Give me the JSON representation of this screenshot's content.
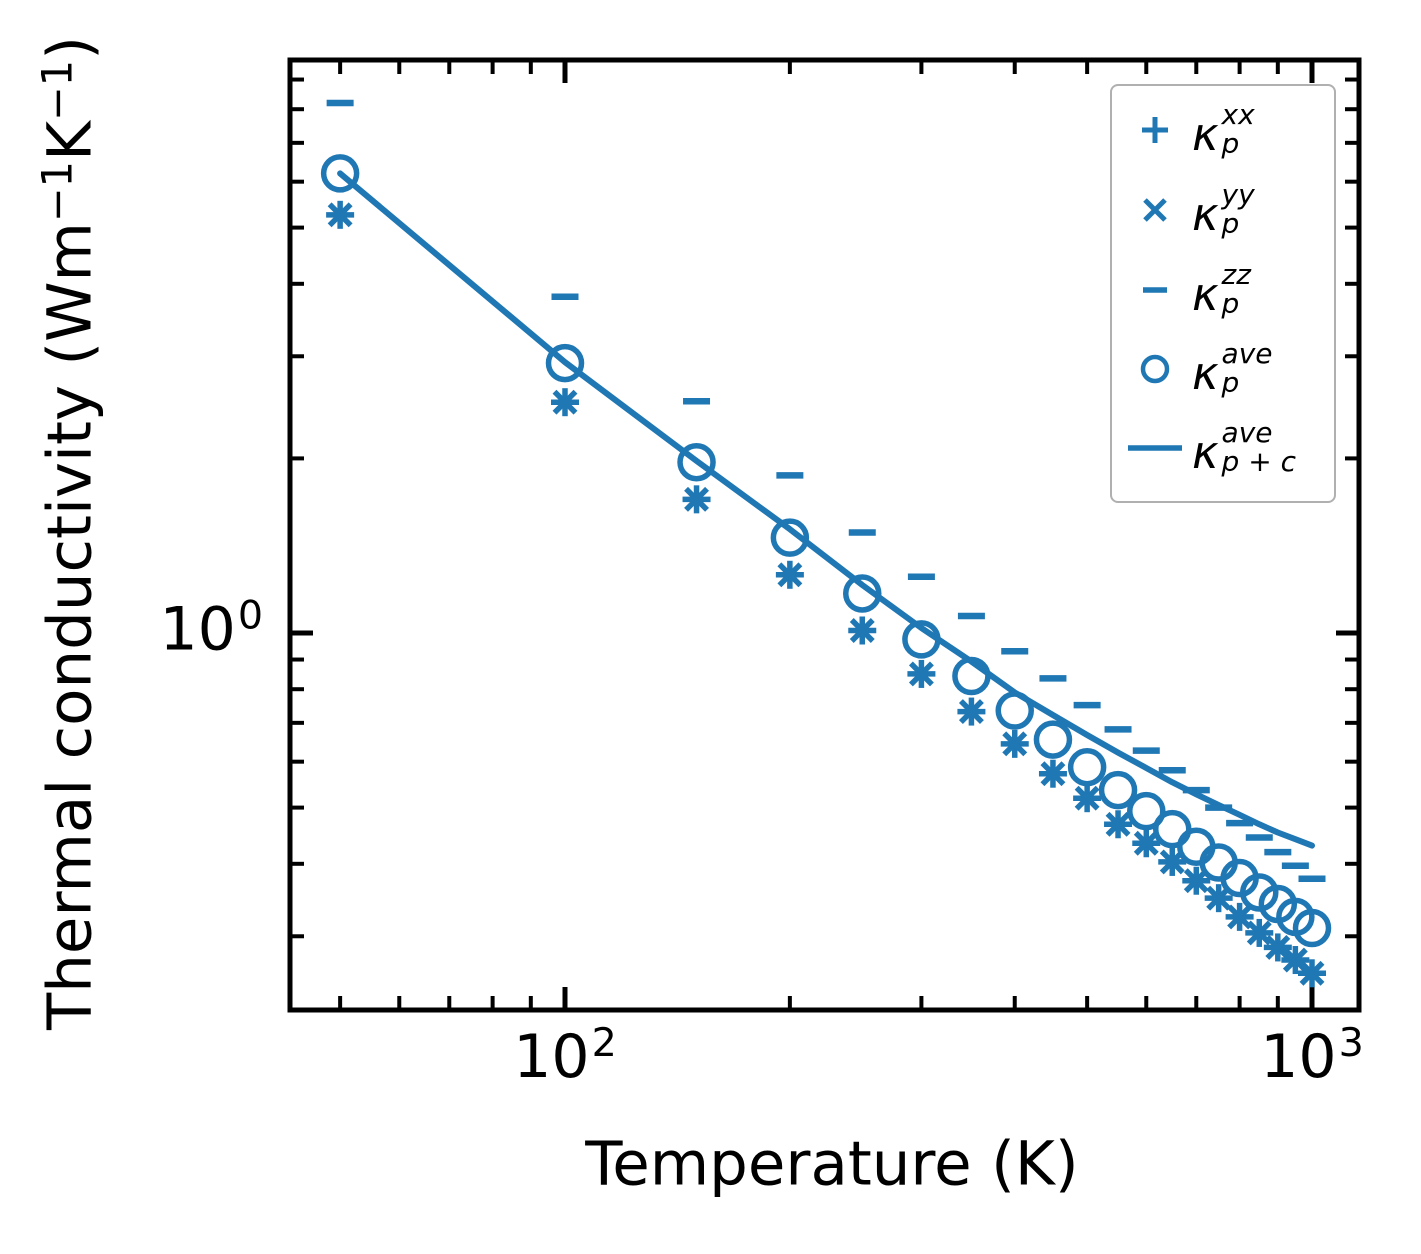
{
  "figure": {
    "background": "#ffffff",
    "accent_color": "#1f77b4",
    "axis_color": "#000000",
    "legend_edge_color": "#b0b0b0"
  },
  "axes": {
    "xlabel": "Temperature (K)",
    "ylabel_prefix": "Thermal conductivity (Wm",
    "ylabel_sup1": "−1",
    "ylabel_mid": "K",
    "ylabel_sup2": "−1",
    "ylabel_suffix": ")",
    "x_ticks": [
      {
        "base": "10",
        "exp": "2"
      },
      {
        "base": "10",
        "exp": "3"
      }
    ],
    "y_ticks": [
      {
        "base": "10",
        "exp": "0"
      }
    ],
    "x_scale": "log",
    "y_scale": "log"
  },
  "legend": {
    "items": [
      {
        "marker": "plus",
        "base": "κ",
        "sup": "xx",
        "sub": "p"
      },
      {
        "marker": "cross",
        "base": "κ",
        "sup": "yy",
        "sub": "p"
      },
      {
        "marker": "dash",
        "base": "κ",
        "sup": "zz",
        "sub": "p"
      },
      {
        "marker": "circle",
        "base": "κ",
        "sup": "ave",
        "sub": "p"
      },
      {
        "marker": "line",
        "base": "κ",
        "sup": "ave",
        "sub": "p + c"
      }
    ]
  },
  "chart_data": {
    "type": "scatter",
    "title": "",
    "xlabel": "Temperature (K)",
    "ylabel": "Thermal conductivity (Wm−1K−1)",
    "x_scale": "log",
    "y_scale": "log",
    "xlim": [
      42.8,
      1156
    ],
    "ylim": [
      0.224,
      9.73
    ],
    "grid": false,
    "legend_position": "upper right",
    "x_ticks_major": [
      100,
      1000
    ],
    "x_ticks_minor": [
      50,
      60,
      70,
      80,
      90,
      200,
      300,
      400,
      500,
      600,
      700,
      800,
      900
    ],
    "y_ticks_major": [
      1
    ],
    "y_ticks_minor": [
      0.3,
      0.4,
      0.5,
      0.6,
      0.7,
      0.8,
      0.9,
      2,
      3,
      4,
      5,
      6,
      7,
      8,
      9
    ],
    "x": [
      50,
      100,
      150,
      200,
      250,
      300,
      350,
      400,
      450,
      500,
      550,
      600,
      650,
      700,
      750,
      800,
      850,
      900,
      950,
      1000
    ],
    "series": [
      {
        "name": "kappa_p_xx",
        "label": "κ_p^xx",
        "marker": "plus",
        "values": [
          5.26,
          2.5,
          1.7,
          1.26,
          1.01,
          0.85,
          0.732,
          0.644,
          0.572,
          0.519,
          0.468,
          0.434,
          0.403,
          0.374,
          0.349,
          0.324,
          0.304,
          0.287,
          0.273,
          0.259
        ]
      },
      {
        "name": "kappa_p_yy",
        "label": "κ_p^yy",
        "marker": "cross",
        "values": [
          5.26,
          2.5,
          1.7,
          1.26,
          1.01,
          0.85,
          0.732,
          0.644,
          0.572,
          0.519,
          0.468,
          0.434,
          0.403,
          0.374,
          0.349,
          0.324,
          0.304,
          0.287,
          0.273,
          0.259
        ]
      },
      {
        "name": "kappa_p_zz",
        "label": "κ_p^zz",
        "marker": "dash",
        "values": [
          8.2,
          3.8,
          2.51,
          1.87,
          1.49,
          1.25,
          1.07,
          0.93,
          0.835,
          0.751,
          0.682,
          0.627,
          0.58,
          0.536,
          0.5,
          0.47,
          0.444,
          0.419,
          0.397,
          0.377
        ]
      },
      {
        "name": "kappa_p_ave",
        "label": "κ_p^ave",
        "marker": "circle",
        "values": [
          6.2,
          2.92,
          1.97,
          1.46,
          1.17,
          0.975,
          0.843,
          0.735,
          0.655,
          0.587,
          0.536,
          0.493,
          0.459,
          0.428,
          0.402,
          0.378,
          0.357,
          0.341,
          0.324,
          0.31
        ]
      },
      {
        "name": "kappa_p_plus_c_ave",
        "label": "κ_{p+c}^ave",
        "marker": "line",
        "values": [
          6.2,
          2.93,
          1.98,
          1.51,
          1.21,
          1.02,
          0.893,
          0.79,
          0.722,
          0.667,
          0.622,
          0.585,
          0.553,
          0.527,
          0.505,
          0.486,
          0.468,
          0.453,
          0.441,
          0.43
        ]
      }
    ]
  }
}
